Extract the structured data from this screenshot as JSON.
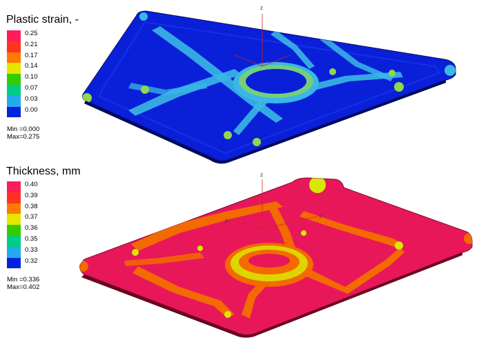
{
  "panels": [
    {
      "title": "Plastic strain, -",
      "legend_values": [
        "0.25",
        "0.21",
        "0.17",
        "0.14",
        "0.10",
        "0.07",
        "0.03",
        "0.00"
      ],
      "legend_colors": [
        "#ff1a5a",
        "#ff3322",
        "#ff7a00",
        "#e6e600",
        "#33cc00",
        "#00cc88",
        "#22aaee",
        "#0022dd"
      ],
      "min": "Min =0.000",
      "max": "Max=0.275"
    },
    {
      "title": "Thickness, mm",
      "legend_values": [
        "0.40",
        "0.39",
        "0.38",
        "0.37",
        "0.36",
        "0.35",
        "0.33",
        "0.32"
      ],
      "legend_colors": [
        "#ff1a5a",
        "#ff3322",
        "#ff7a00",
        "#e6e600",
        "#33cc00",
        "#00cc88",
        "#22aaee",
        "#0022dd"
      ],
      "min": "Min =0.336",
      "max": "Max=0.402"
    }
  ],
  "axis_labels": {
    "z": "z",
    "y": "y",
    "x": "x"
  },
  "colors": {
    "strain_base": "#0a1fd8",
    "strain_feature": "#3ab7e6",
    "strain_hot": "#8fd84a",
    "thick_base": "#e8175a",
    "thick_feature": "#f36a00",
    "thick_hot": "#d8e800"
  }
}
